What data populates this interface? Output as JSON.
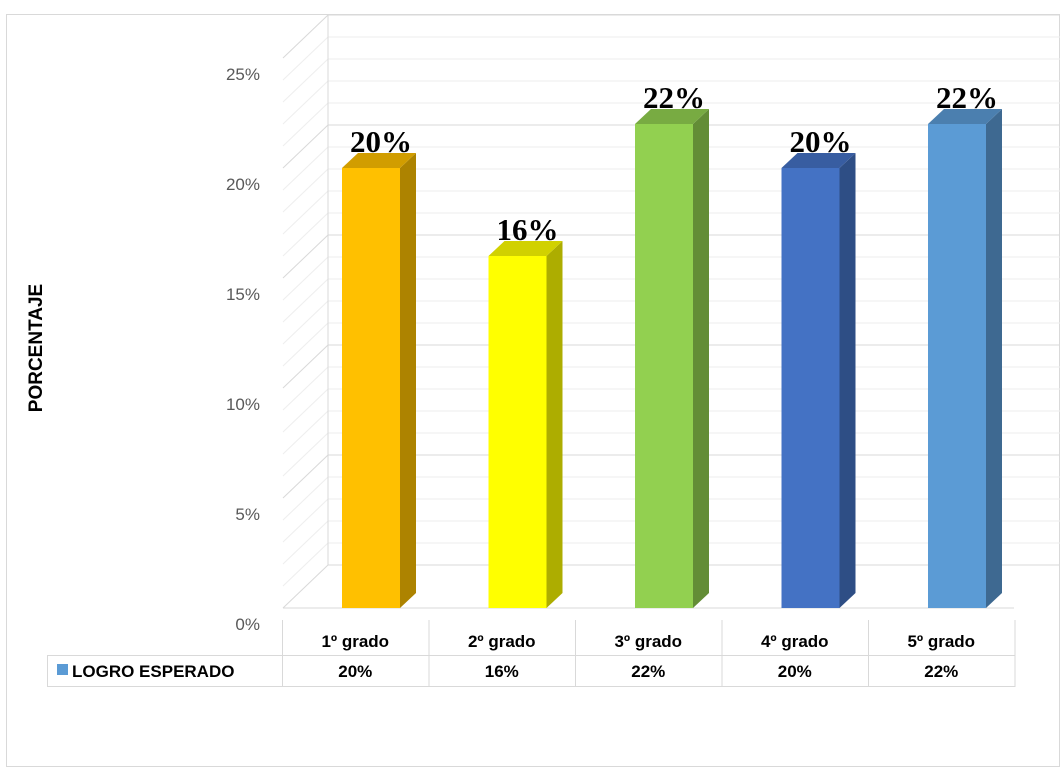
{
  "chart_data": {
    "type": "bar",
    "ylabel": "PORCENTAJE",
    "ylim": [
      0,
      25
    ],
    "y_ticks": [
      "0%",
      "5%",
      "10%",
      "15%",
      "20%",
      "25%"
    ],
    "categories": [
      "1º grado",
      "2º grado",
      "3º grado",
      "4º grado",
      "5º grado"
    ],
    "series": [
      {
        "name": "LOGRO ESPERADO",
        "color": "#5B9BD5",
        "values": [
          20,
          16,
          22,
          20,
          22
        ],
        "labels": [
          "20%",
          "16%",
          "22%",
          "20%",
          "22%"
        ],
        "bar_colors": [
          "#FFC000",
          "#FFFF00",
          "#92D050",
          "#4472C4",
          "#5B9BD5"
        ]
      }
    ],
    "grid": true,
    "legend": "data-table"
  }
}
